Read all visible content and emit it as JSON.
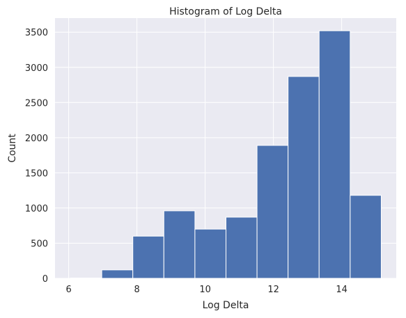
{
  "chart_data": {
    "type": "bar",
    "title": "Histogram of Log Delta",
    "xlabel": "Log Delta",
    "ylabel": "Count",
    "bin_edges": [
      6.06,
      6.97,
      7.88,
      8.79,
      9.7,
      10.61,
      11.52,
      12.43,
      13.34,
      14.25,
      15.16
    ],
    "values": [
      5,
      120,
      600,
      960,
      700,
      870,
      1890,
      2870,
      3520,
      1180
    ],
    "xlim": [
      5.6,
      15.6
    ],
    "ylim": [
      0,
      3700
    ],
    "xticks": [
      6,
      8,
      10,
      12,
      14
    ],
    "yticks": [
      0,
      500,
      1000,
      1500,
      2000,
      2500,
      3000,
      3500
    ],
    "grid": true,
    "background_color": "#eaeaf2",
    "bar_color": "#4c72b0",
    "grid_color": "#ffffff"
  }
}
